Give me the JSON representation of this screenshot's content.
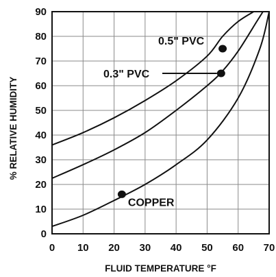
{
  "chart_data": {
    "type": "line",
    "xlabel": "FLUID TEMPERATURE °F",
    "ylabel": "% RELATIVE HUMIDITY",
    "xlim": [
      0,
      70
    ],
    "ylim": [
      0,
      90
    ],
    "x_ticks": [
      0,
      10,
      20,
      30,
      40,
      50,
      60,
      70
    ],
    "y_ticks": [
      0,
      10,
      20,
      30,
      40,
      50,
      60,
      70,
      80,
      90
    ],
    "grid": true,
    "series": [
      {
        "name": "0.5\" PVC",
        "x": [
          0,
          10,
          20,
          30,
          40,
          50,
          55,
          60,
          65
        ],
        "y": [
          36,
          41,
          47,
          54,
          62,
          72,
          80,
          86,
          90
        ],
        "marker": {
          "x": 55,
          "y": 75
        }
      },
      {
        "name": "0.3\" PVC",
        "x": [
          0,
          10,
          20,
          30,
          40,
          50,
          55,
          60,
          66,
          68
        ],
        "y": [
          22.5,
          28,
          34,
          41,
          50,
          60,
          66,
          74,
          86,
          90
        ],
        "marker": {
          "x": 54.5,
          "y": 65
        }
      },
      {
        "name": "COPPER",
        "x": [
          0,
          10,
          20,
          30,
          40,
          50,
          60,
          67,
          70
        ],
        "y": [
          3,
          7.5,
          13.5,
          20,
          28,
          38,
          55,
          75,
          90
        ],
        "marker": {
          "x": 22.5,
          "y": 16
        }
      }
    ],
    "annotations": [
      {
        "text": "0.5\" PVC",
        "series": 0
      },
      {
        "text": "0.3\" PVC",
        "series": 1
      },
      {
        "text": "COPPER",
        "series": 2
      }
    ]
  }
}
